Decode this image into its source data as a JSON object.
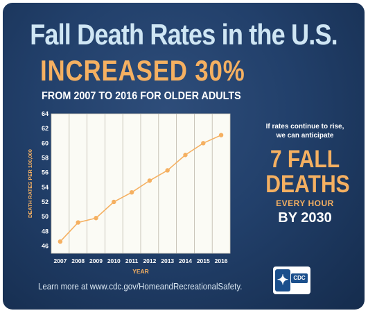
{
  "header": {
    "title": "Fall Death Rates in the U.S.",
    "headline": "INCREASED 30%",
    "subtitle": "FROM 2007 TO 2016 FOR OLDER ADULTS"
  },
  "side_panel": {
    "note_line1": "If rates continue to rise,",
    "note_line2": "we can anticipate",
    "big_line1": "7 FALL",
    "big_line2": "DEATHS",
    "every": "EVERY HOUR",
    "by": "BY 2030"
  },
  "footer": {
    "text": "Learn more at www.cdc.gov/HomeandRecreationalSafety.",
    "logo_badge": "CDC"
  },
  "colors": {
    "background": "#22406b",
    "accent": "#f5b061",
    "title": "#cfe6f4",
    "plot_area": "#fbfbf5"
  },
  "chart_data": {
    "type": "line",
    "xlabel": "YEAR",
    "ylabel": "DEATH RATES PER 100,000",
    "x": [
      2007,
      2008,
      2009,
      2010,
      2011,
      2012,
      2013,
      2014,
      2015,
      2016
    ],
    "series": [
      {
        "values": [
          46.6,
          49.2,
          49.8,
          52.0,
          53.3,
          54.9,
          56.3,
          58.4,
          60.0,
          61.1
        ]
      }
    ],
    "yticks": [
      46,
      48,
      50,
      52,
      54,
      56,
      58,
      60,
      62,
      64
    ],
    "ylim": [
      45,
      64
    ],
    "grid": "vertical",
    "legend": "none"
  }
}
